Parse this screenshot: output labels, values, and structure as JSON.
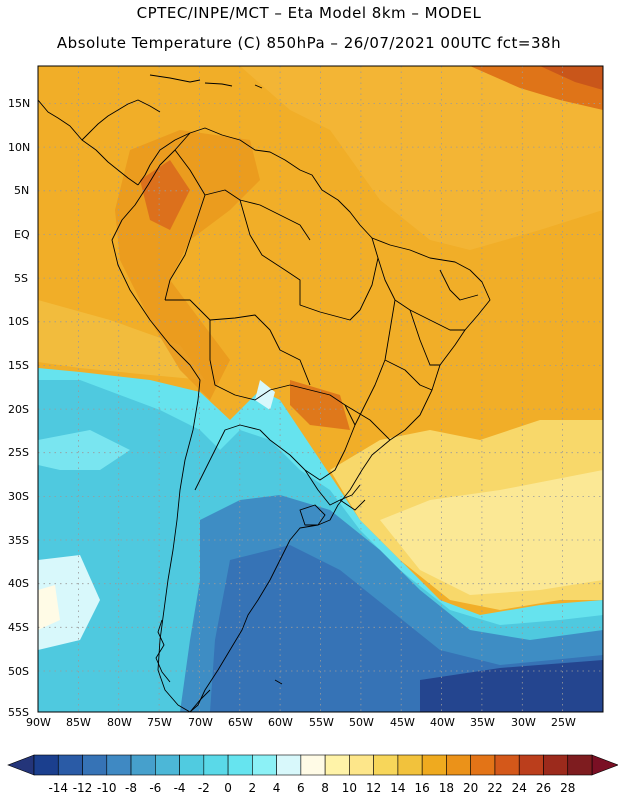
{
  "header": {
    "line1": "CPTEC/INPE/MCT –  Eta Model 8km – MODEL",
    "line2": "Absolute Temperature (C) 850hPa – 26/07/2021 00UTC fct=38h"
  },
  "map": {
    "lat_labels": [
      "15N",
      "10N",
      "5N",
      "EQ",
      "5S",
      "10S",
      "15S",
      "20S",
      "25S",
      "30S",
      "35S",
      "40S",
      "45S",
      "50S",
      "55S"
    ],
    "lon_labels": [
      "90W",
      "85W",
      "80W",
      "75W",
      "70W",
      "65W",
      "60W",
      "55W",
      "50W",
      "45W",
      "40W",
      "35W",
      "30W",
      "25W"
    ],
    "lat_range": [
      -55,
      19
    ],
    "lon_range": [
      -90,
      -20
    ]
  },
  "colorbar": {
    "ticks": [
      "-14",
      "-12",
      "-10",
      "-8",
      "-6",
      "-4",
      "-2",
      "0",
      "2",
      "4",
      "6",
      "8",
      "10",
      "12",
      "14",
      "16",
      "18",
      "20",
      "22",
      "24",
      "26",
      "28"
    ],
    "colors": [
      "#1b3f8e",
      "#2a5ba6",
      "#3673b6",
      "#3f89c3",
      "#46a0cc",
      "#4cb7d7",
      "#50cbe0",
      "#5ad9e8",
      "#66e4ef",
      "#8cf1f6",
      "#d8f8fb",
      "#fffbe6",
      "#fff3a8",
      "#fde68a",
      "#f7d65a",
      "#f2c23c",
      "#efaa1f",
      "#eb9219",
      "#e37417",
      "#d4581a",
      "#bb3e1c",
      "#9c2a1c",
      "#7e1c1f"
    ],
    "arrow_low_color": "#24357a",
    "arrow_high_color": "#7a0f24"
  },
  "colors": {
    "ocean_warm": "#f2ad23",
    "land_warm": "#eea11e",
    "border": "#000000",
    "grid": "#9a9a9a"
  }
}
